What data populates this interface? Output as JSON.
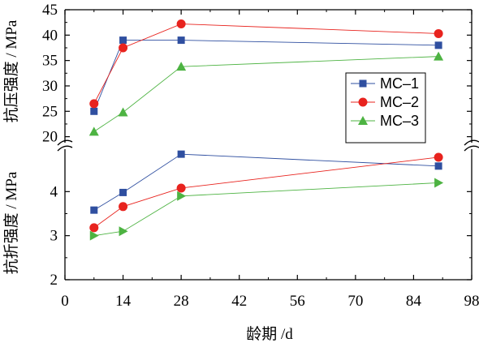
{
  "chart_data": {
    "type": "line",
    "x_axis": {
      "label": "龄期 /d",
      "ticks": [
        0,
        14,
        28,
        42,
        56,
        70,
        84,
        98
      ],
      "range": [
        0,
        98
      ]
    },
    "panels": [
      {
        "id": "compressive",
        "ylabel": "抗压强度 / MPa",
        "ylim": [
          18.5,
          45
        ],
        "ticks": [
          20,
          25,
          30,
          35,
          40,
          45
        ],
        "series": [
          {
            "name": "MC–1",
            "marker": "square",
            "color": "#2F4FA0",
            "x": [
              7,
              14,
              28,
              90
            ],
            "y": [
              25,
              39,
              39,
              38
            ]
          },
          {
            "name": "MC–2",
            "marker": "circle",
            "color": "#E8231E",
            "x": [
              7,
              14,
              28,
              90
            ],
            "y": [
              26.5,
              37.5,
              42.2,
              40.3
            ]
          },
          {
            "name": "MC–3",
            "marker": "triangle-up",
            "color": "#4DB342",
            "x": [
              7,
              14,
              28,
              90
            ],
            "y": [
              21,
              24.8,
              33.8,
              35.8
            ]
          }
        ]
      },
      {
        "id": "flexural",
        "ylabel": "抗折强度 / MPa",
        "ylim": [
          2,
          5.0
        ],
        "ticks": [
          2,
          3,
          4
        ],
        "series": [
          {
            "name": "MC–1",
            "marker": "square",
            "color": "#2F4FA0",
            "x": [
              7,
              14,
              28,
              90
            ],
            "y": [
              3.58,
              3.98,
              4.85,
              4.58
            ]
          },
          {
            "name": "MC–2",
            "marker": "circle",
            "color": "#E8231E",
            "x": [
              7,
              14,
              28,
              90
            ],
            "y": [
              3.18,
              3.66,
              4.08,
              4.78
            ]
          },
          {
            "name": "MC–3",
            "marker": "triangle-right",
            "color": "#4DB342",
            "x": [
              7,
              14,
              28,
              90
            ],
            "y": [
              3.0,
              3.1,
              3.9,
              4.2
            ]
          }
        ]
      }
    ],
    "legend": {
      "placement": "upper-panel-right",
      "entries": [
        "MC–1",
        "MC–2",
        "MC–3"
      ]
    },
    "grid": false,
    "axis_break": true
  }
}
